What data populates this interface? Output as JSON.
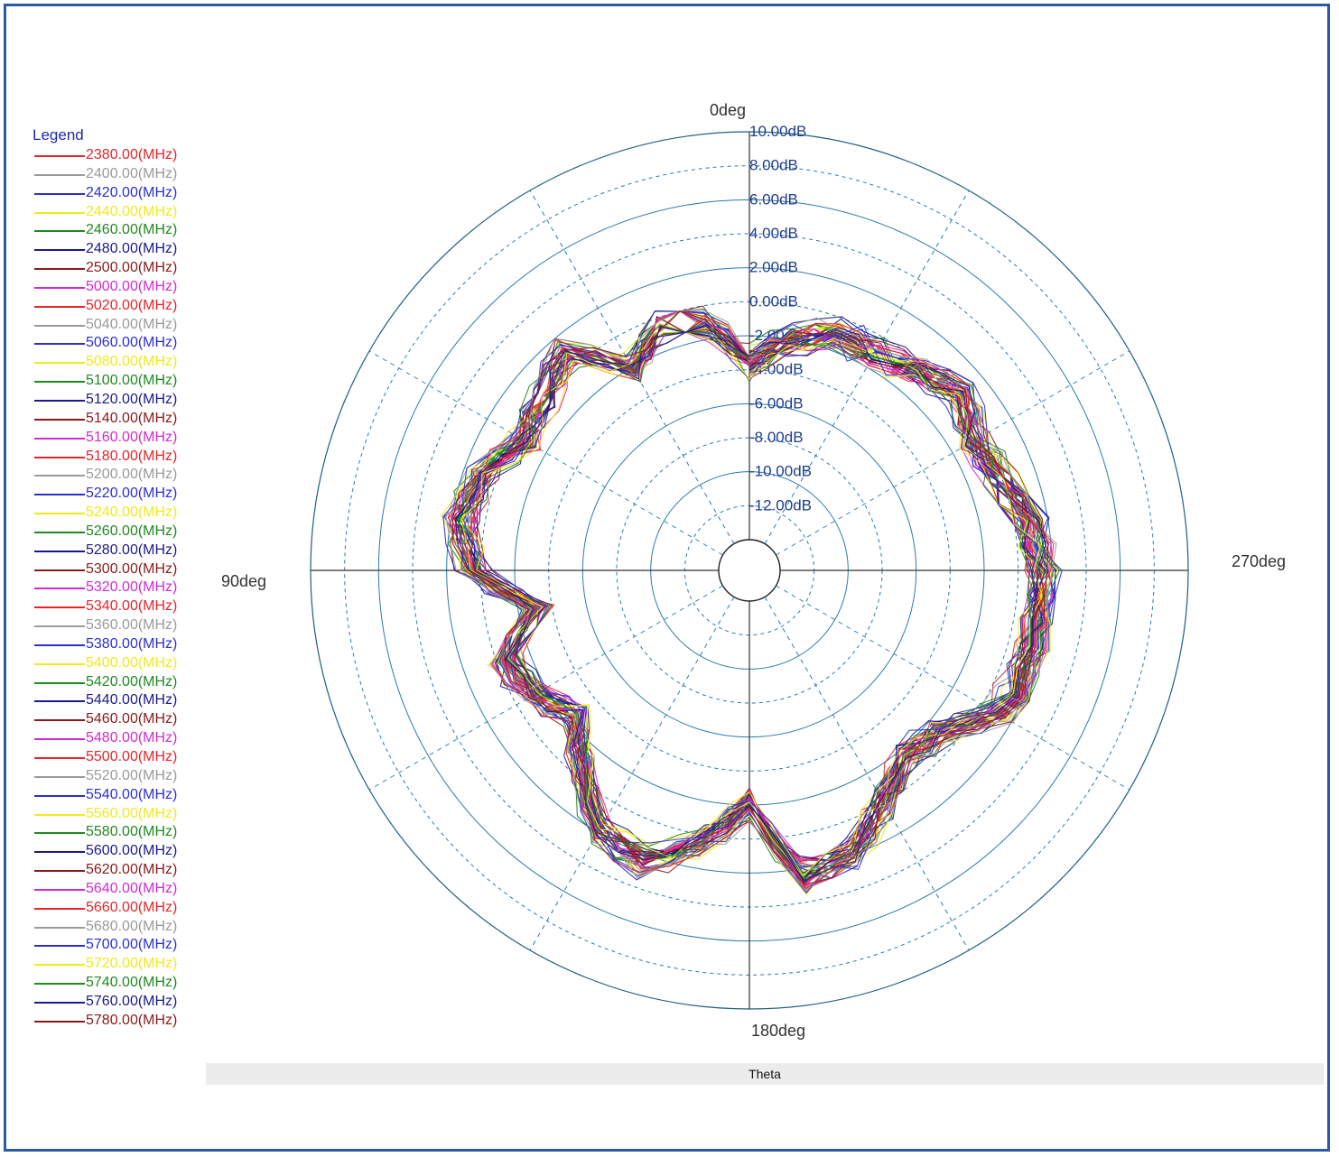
{
  "chart_data": {
    "type": "polar-line",
    "xlabel": "Theta",
    "angle_labels": [
      {
        "text": "0deg",
        "angle": 0
      },
      {
        "text": "90deg",
        "angle": 90
      },
      {
        "text": "180deg",
        "angle": 180
      },
      {
        "text": "270deg",
        "angle": 270
      }
    ],
    "angle_direction": "counterclockwise",
    "radial_range": [
      -14,
      10
    ],
    "radial_ticks": [
      {
        "value": 10,
        "label": "10.00dB"
      },
      {
        "value": 8,
        "label": "8.00dB"
      },
      {
        "value": 6,
        "label": "6.00dB"
      },
      {
        "value": 4,
        "label": "4.00dB"
      },
      {
        "value": 2,
        "label": "2.00dB"
      },
      {
        "value": 0,
        "label": "0.00dB"
      },
      {
        "value": -2,
        "label": "-2.00dB"
      },
      {
        "value": -4,
        "label": "-4.00dB"
      },
      {
        "value": -6,
        "label": "-6.00dB"
      },
      {
        "value": -8,
        "label": "-8.00dB"
      },
      {
        "value": -10,
        "label": "-10.00dB"
      },
      {
        "value": -12,
        "label": "-12.00dB"
      }
    ],
    "legend_title": "Legend",
    "legend_position": "left",
    "grid": true,
    "series": [
      {
        "name": "2380.00(MHz)",
        "color": "#e8242a"
      },
      {
        "name": "2400.00(MHz)",
        "color": "#9a9a9a"
      },
      {
        "name": "2420.00(MHz)",
        "color": "#2b2fd0"
      },
      {
        "name": "2440.00(MHz)",
        "color": "#f2ea1a"
      },
      {
        "name": "2460.00(MHz)",
        "color": "#1f8a1f"
      },
      {
        "name": "2480.00(MHz)",
        "color": "#1a1a8a"
      },
      {
        "name": "2500.00(MHz)",
        "color": "#8a1a1a"
      },
      {
        "name": "5000.00(MHz)",
        "color": "#d22ad2"
      },
      {
        "name": "5020.00(MHz)",
        "color": "#e8242a"
      },
      {
        "name": "5040.00(MHz)",
        "color": "#9a9a9a"
      },
      {
        "name": "5060.00(MHz)",
        "color": "#2b2fd0"
      },
      {
        "name": "5080.00(MHz)",
        "color": "#f2ea1a"
      },
      {
        "name": "5100.00(MHz)",
        "color": "#1f8a1f"
      },
      {
        "name": "5120.00(MHz)",
        "color": "#1a1a8a"
      },
      {
        "name": "5140.00(MHz)",
        "color": "#8a1a1a"
      },
      {
        "name": "5160.00(MHz)",
        "color": "#d22ad2"
      },
      {
        "name": "5180.00(MHz)",
        "color": "#e8242a"
      },
      {
        "name": "5200.00(MHz)",
        "color": "#9a9a9a"
      },
      {
        "name": "5220.00(MHz)",
        "color": "#2b2fd0"
      },
      {
        "name": "5240.00(MHz)",
        "color": "#f2ea1a"
      },
      {
        "name": "5260.00(MHz)",
        "color": "#1f8a1f"
      },
      {
        "name": "5280.00(MHz)",
        "color": "#1a1a8a"
      },
      {
        "name": "5300.00(MHz)",
        "color": "#8a1a1a"
      },
      {
        "name": "5320.00(MHz)",
        "color": "#d22ad2"
      },
      {
        "name": "5340.00(MHz)",
        "color": "#e8242a"
      },
      {
        "name": "5360.00(MHz)",
        "color": "#9a9a9a"
      },
      {
        "name": "5380.00(MHz)",
        "color": "#2b2fd0"
      },
      {
        "name": "5400.00(MHz)",
        "color": "#f2ea1a"
      },
      {
        "name": "5420.00(MHz)",
        "color": "#1f8a1f"
      },
      {
        "name": "5440.00(MHz)",
        "color": "#1a1a8a"
      },
      {
        "name": "5460.00(MHz)",
        "color": "#8a1a1a"
      },
      {
        "name": "5480.00(MHz)",
        "color": "#d22ad2"
      },
      {
        "name": "5500.00(MHz)",
        "color": "#e8242a"
      },
      {
        "name": "5520.00(MHz)",
        "color": "#9a9a9a"
      },
      {
        "name": "5540.00(MHz)",
        "color": "#2b2fd0"
      },
      {
        "name": "5560.00(MHz)",
        "color": "#f2ea1a"
      },
      {
        "name": "5580.00(MHz)",
        "color": "#1f8a1f"
      },
      {
        "name": "5600.00(MHz)",
        "color": "#1a1a8a"
      },
      {
        "name": "5620.00(MHz)",
        "color": "#8a1a1a"
      },
      {
        "name": "5640.00(MHz)",
        "color": "#d22ad2"
      },
      {
        "name": "5660.00(MHz)",
        "color": "#e8242a"
      },
      {
        "name": "5680.00(MHz)",
        "color": "#9a9a9a"
      },
      {
        "name": "5700.00(MHz)",
        "color": "#2b2fd0"
      },
      {
        "name": "5720.00(MHz)",
        "color": "#f2ea1a"
      },
      {
        "name": "5740.00(MHz)",
        "color": "#1f8a1f"
      },
      {
        "name": "5760.00(MHz)",
        "color": "#1a1a8a"
      },
      {
        "name": "5780.00(MHz)",
        "color": "#8a1a1a"
      }
    ],
    "pattern_envelope": {
      "angles": [
        0,
        10,
        20,
        30,
        40,
        50,
        60,
        70,
        80,
        90,
        100,
        110,
        120,
        130,
        140,
        150,
        160,
        170,
        180,
        190,
        200,
        210,
        220,
        230,
        240,
        250,
        260,
        270,
        280,
        290,
        300,
        310,
        320,
        330,
        340,
        350
      ],
      "gain_db": [
        -3.5,
        -1,
        -0.5,
        -2,
        1,
        0,
        -0.5,
        1,
        1.5,
        0.5,
        -3,
        -0.5,
        -1,
        -2.5,
        -0.5,
        2,
        2.5,
        0.5,
        -2,
        2.5,
        2,
        0,
        -1.5,
        -1,
        1,
        1.5,
        1.5,
        1.5,
        1,
        0,
        -0.5,
        0.5,
        -0.5,
        -1,
        -1,
        -2
      ]
    }
  }
}
